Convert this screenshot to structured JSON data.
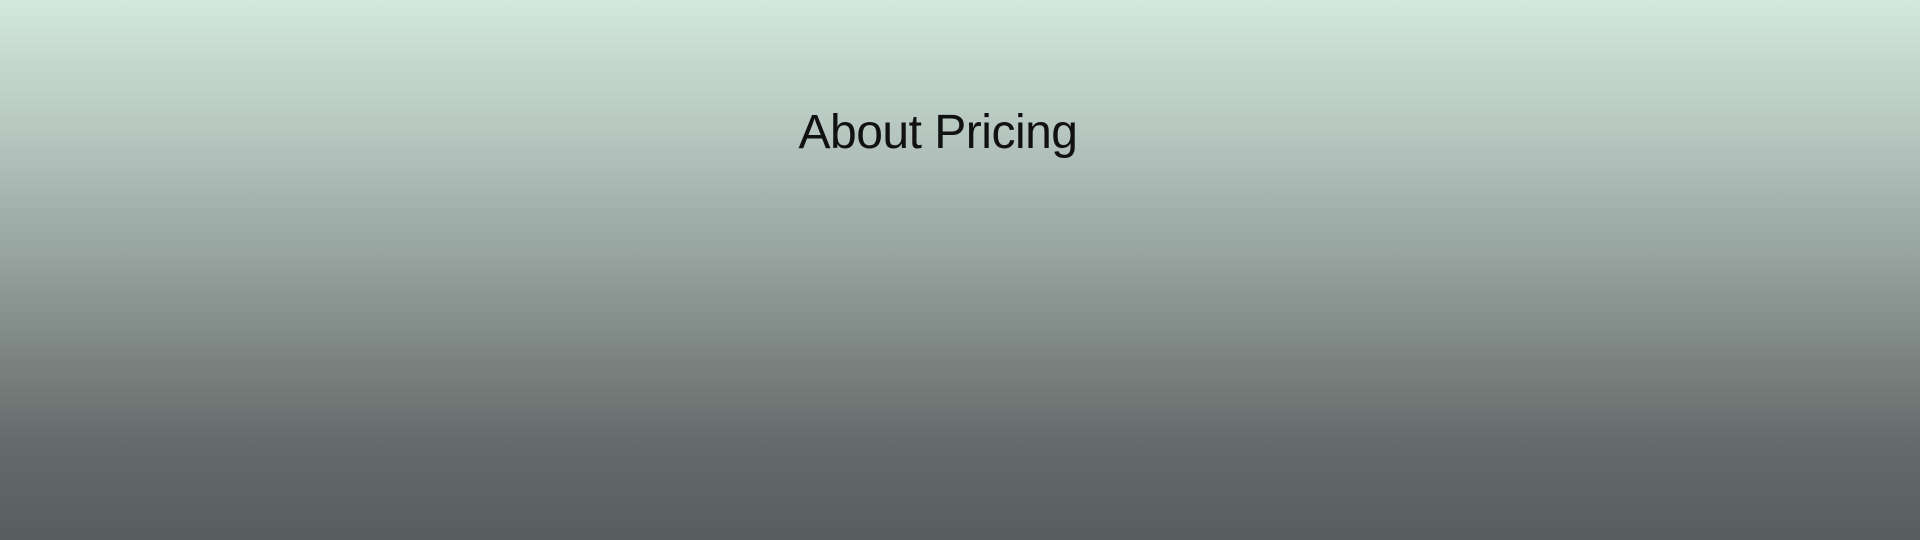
{
  "page": {
    "title": "About Pricing"
  },
  "colors": {
    "gradient_top": "#d2e8de",
    "gradient_bottom": "#585d60",
    "title_text": "#111111"
  }
}
